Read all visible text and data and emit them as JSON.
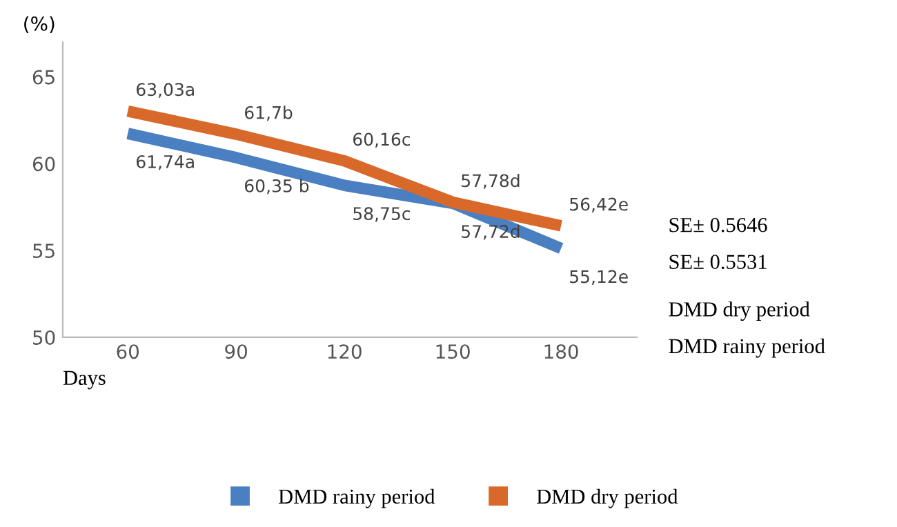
{
  "chart_data": {
    "type": "line",
    "ylabel": "(%)",
    "xlabel": "Days",
    "categories": [
      "60",
      "90",
      "120",
      "150",
      "180"
    ],
    "series": [
      {
        "name": "DMD rainy period",
        "color": "#4a7fc1",
        "values": [
          61.74,
          60.35,
          58.75,
          57.72,
          55.12
        ],
        "value_labels": [
          "61,74a",
          "60,35 b",
          "58,75c",
          "57,72d",
          "55,12e"
        ]
      },
      {
        "name": "DMD dry period",
        "color": "#d9692b",
        "values": [
          63.03,
          61.7,
          60.16,
          57.78,
          56.42
        ],
        "value_labels": [
          "63,03a",
          "61,7b",
          "60,16c",
          "57,78d",
          "56,42e"
        ]
      }
    ],
    "ylim": [
      50,
      67
    ],
    "yticks": [
      50,
      55,
      60,
      65
    ],
    "grid": false,
    "legend": "bottom",
    "marker": "none",
    "line_style": "solid",
    "annotations": [
      "SE± 0.5646",
      "SE± 0.5531",
      "DMD dry period",
      "DMD rainy period"
    ]
  }
}
